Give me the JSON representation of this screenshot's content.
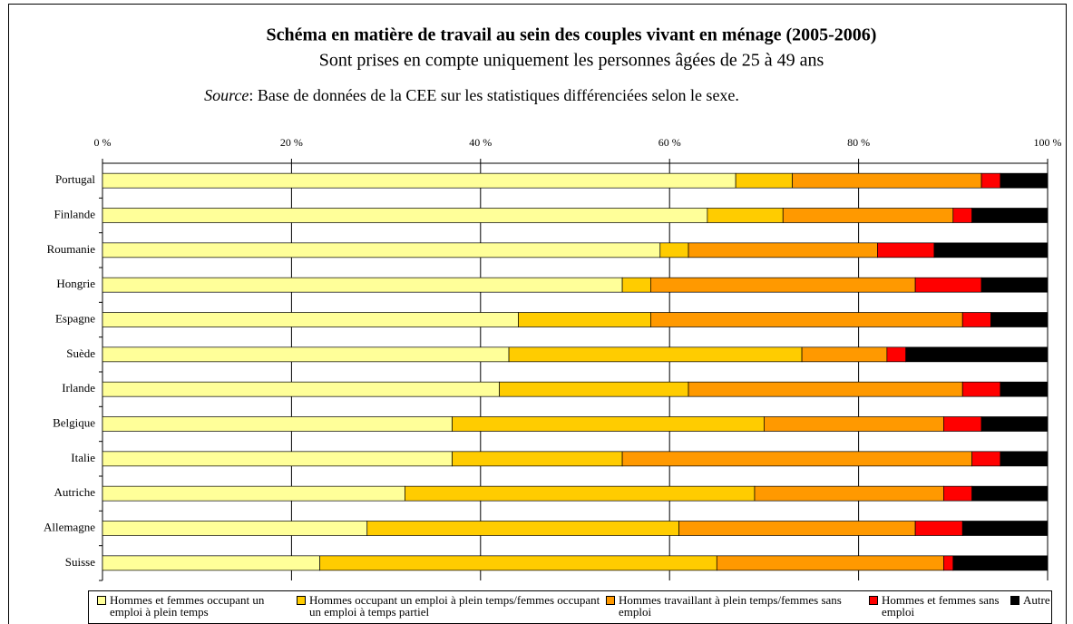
{
  "chart_data": {
    "type": "stacked_barh",
    "title": "Schéma en matière de travail au sein des couples vivant en ménage (2005-2006)",
    "subtitle": "Sont prises en compte uniquement les personnes âgées de 25 à 49 ans",
    "source_label": "Source",
    "source": ": Base de données de la CEE sur les statistiques différenciées selon le sexe.",
    "categories": [
      "Portugal",
      "Finlande",
      "Roumanie",
      "Hongrie",
      "Espagne",
      "Suède",
      "Irlande",
      "Belgique",
      "Italie",
      "Autriche",
      "Allemagne",
      "Suisse"
    ],
    "series": [
      {
        "name": "Hommes et femmes occupant un emploi à plein temps",
        "color": "#ffff99",
        "values": [
          67,
          64,
          59,
          55,
          44,
          43,
          42,
          37,
          37,
          32,
          28,
          23
        ]
      },
      {
        "name": "Hommes occupant un emploi à plein temps/femmes occupant un emploi à temps partiel",
        "color": "#ffcc00",
        "values": [
          6,
          8,
          3,
          3,
          14,
          31,
          20,
          33,
          18,
          37,
          33,
          42
        ]
      },
      {
        "name": "Hommes travaillant à plein temps/femmes sans emploi",
        "color": "#ff9900",
        "values": [
          20,
          18,
          20,
          28,
          33,
          9,
          29,
          19,
          37,
          20,
          25,
          24
        ]
      },
      {
        "name": "Hommes et femmes sans emploi",
        "color": "#ff0000",
        "values": [
          2,
          2,
          6,
          7,
          3,
          2,
          4,
          4,
          3,
          3,
          5,
          1
        ]
      },
      {
        "name": "Autre",
        "color": "#000000",
        "values": [
          5,
          8,
          12,
          7,
          6,
          15,
          5,
          7,
          5,
          8,
          9,
          10
        ]
      }
    ],
    "xlim": [
      0,
      100
    ],
    "xticks": [
      {
        "value": 0,
        "label": "0 %"
      },
      {
        "value": 20,
        "label": "20 %"
      },
      {
        "value": 40,
        "label": "40 %"
      },
      {
        "value": 60,
        "label": "60 %"
      },
      {
        "value": 80,
        "label": "80 %"
      },
      {
        "value": 100,
        "label": "100 %"
      }
    ],
    "grid": true
  }
}
